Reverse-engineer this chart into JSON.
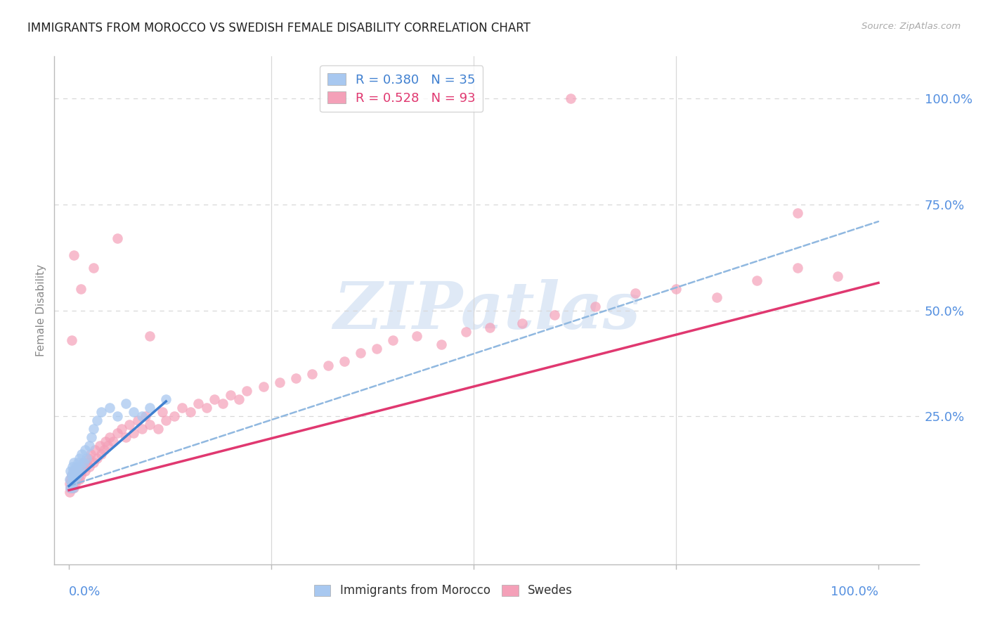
{
  "title": "IMMIGRANTS FROM MOROCCO VS SWEDISH FEMALE DISABILITY CORRELATION CHART",
  "source": "Source: ZipAtlas.com",
  "ylabel": "Female Disability",
  "background_color": "#ffffff",
  "watermark_text": "ZIPatlas",
  "legend_r_blue": "R = 0.380",
  "legend_n_blue": "N = 35",
  "legend_r_pink": "R = 0.528",
  "legend_n_pink": "N = 93",
  "blue_scatter_color": "#a8c8f0",
  "pink_scatter_color": "#f4a0b8",
  "blue_line_color": "#4080d0",
  "pink_line_color": "#e03870",
  "dashed_line_color": "#90b8e0",
  "grid_color": "#d8d8d8",
  "axis_color": "#bbbbbb",
  "title_color": "#222222",
  "tick_label_color": "#5590e0",
  "source_color": "#aaaaaa",
  "ylabel_color": "#888888",
  "blue_x": [
    0.001,
    0.002,
    0.002,
    0.003,
    0.003,
    0.004,
    0.004,
    0.005,
    0.005,
    0.006,
    0.006,
    0.007,
    0.008,
    0.009,
    0.01,
    0.011,
    0.012,
    0.013,
    0.015,
    0.016,
    0.018,
    0.02,
    0.022,
    0.025,
    0.028,
    0.03,
    0.035,
    0.04,
    0.05,
    0.06,
    0.07,
    0.08,
    0.09,
    0.1,
    0.12
  ],
  "blue_y": [
    0.1,
    0.12,
    0.08,
    0.11,
    0.09,
    0.13,
    0.1,
    0.12,
    0.08,
    0.11,
    0.14,
    0.12,
    0.1,
    0.13,
    0.11,
    0.14,
    0.12,
    0.15,
    0.13,
    0.16,
    0.14,
    0.17,
    0.15,
    0.18,
    0.2,
    0.22,
    0.24,
    0.26,
    0.27,
    0.25,
    0.28,
    0.26,
    0.25,
    0.27,
    0.29
  ],
  "pink_x": [
    0.001,
    0.001,
    0.002,
    0.002,
    0.003,
    0.003,
    0.004,
    0.004,
    0.005,
    0.005,
    0.006,
    0.006,
    0.007,
    0.007,
    0.008,
    0.009,
    0.01,
    0.01,
    0.011,
    0.012,
    0.013,
    0.014,
    0.015,
    0.016,
    0.017,
    0.018,
    0.02,
    0.022,
    0.024,
    0.025,
    0.027,
    0.03,
    0.032,
    0.035,
    0.038,
    0.04,
    0.043,
    0.045,
    0.048,
    0.05,
    0.055,
    0.06,
    0.065,
    0.07,
    0.075,
    0.08,
    0.085,
    0.09,
    0.095,
    0.1,
    0.11,
    0.115,
    0.12,
    0.13,
    0.14,
    0.15,
    0.16,
    0.17,
    0.18,
    0.19,
    0.2,
    0.21,
    0.22,
    0.24,
    0.26,
    0.28,
    0.3,
    0.32,
    0.34,
    0.36,
    0.38,
    0.4,
    0.43,
    0.46,
    0.49,
    0.52,
    0.56,
    0.6,
    0.65,
    0.7,
    0.75,
    0.8,
    0.85,
    0.9,
    0.95,
    0.003,
    0.006,
    0.015,
    0.03,
    0.06,
    0.1,
    0.62,
    0.9
  ],
  "pink_y": [
    0.07,
    0.09,
    0.08,
    0.1,
    0.09,
    0.11,
    0.08,
    0.1,
    0.09,
    0.11,
    0.08,
    0.12,
    0.1,
    0.11,
    0.09,
    0.12,
    0.1,
    0.13,
    0.11,
    0.12,
    0.1,
    0.13,
    0.11,
    0.12,
    0.14,
    0.13,
    0.12,
    0.14,
    0.15,
    0.13,
    0.16,
    0.14,
    0.17,
    0.15,
    0.18,
    0.16,
    0.17,
    0.19,
    0.18,
    0.2,
    0.19,
    0.21,
    0.22,
    0.2,
    0.23,
    0.21,
    0.24,
    0.22,
    0.25,
    0.23,
    0.22,
    0.26,
    0.24,
    0.25,
    0.27,
    0.26,
    0.28,
    0.27,
    0.29,
    0.28,
    0.3,
    0.29,
    0.31,
    0.32,
    0.33,
    0.34,
    0.35,
    0.37,
    0.38,
    0.4,
    0.41,
    0.43,
    0.44,
    0.42,
    0.45,
    0.46,
    0.47,
    0.49,
    0.51,
    0.54,
    0.55,
    0.53,
    0.57,
    0.6,
    0.58,
    0.43,
    0.63,
    0.55,
    0.6,
    0.67,
    0.44,
    1.0,
    0.73
  ],
  "blue_line_x": [
    0.0,
    0.12
  ],
  "blue_line_y": [
    0.085,
    0.285
  ],
  "pink_line_x": [
    0.0,
    1.0
  ],
  "pink_line_y": [
    0.075,
    0.565
  ],
  "dashed_line_x": [
    0.0,
    1.0
  ],
  "dashed_line_y": [
    0.085,
    0.71
  ],
  "xlim": [
    -0.018,
    1.05
  ],
  "ylim": [
    -0.1,
    1.1
  ],
  "yticks": [
    0.25,
    0.5,
    0.75,
    1.0
  ],
  "ytick_labels": [
    "25.0%",
    "50.0%",
    "75.0%",
    "100.0%"
  ],
  "xtick_minor": [
    0.0,
    0.25,
    0.5,
    0.75,
    1.0
  ]
}
